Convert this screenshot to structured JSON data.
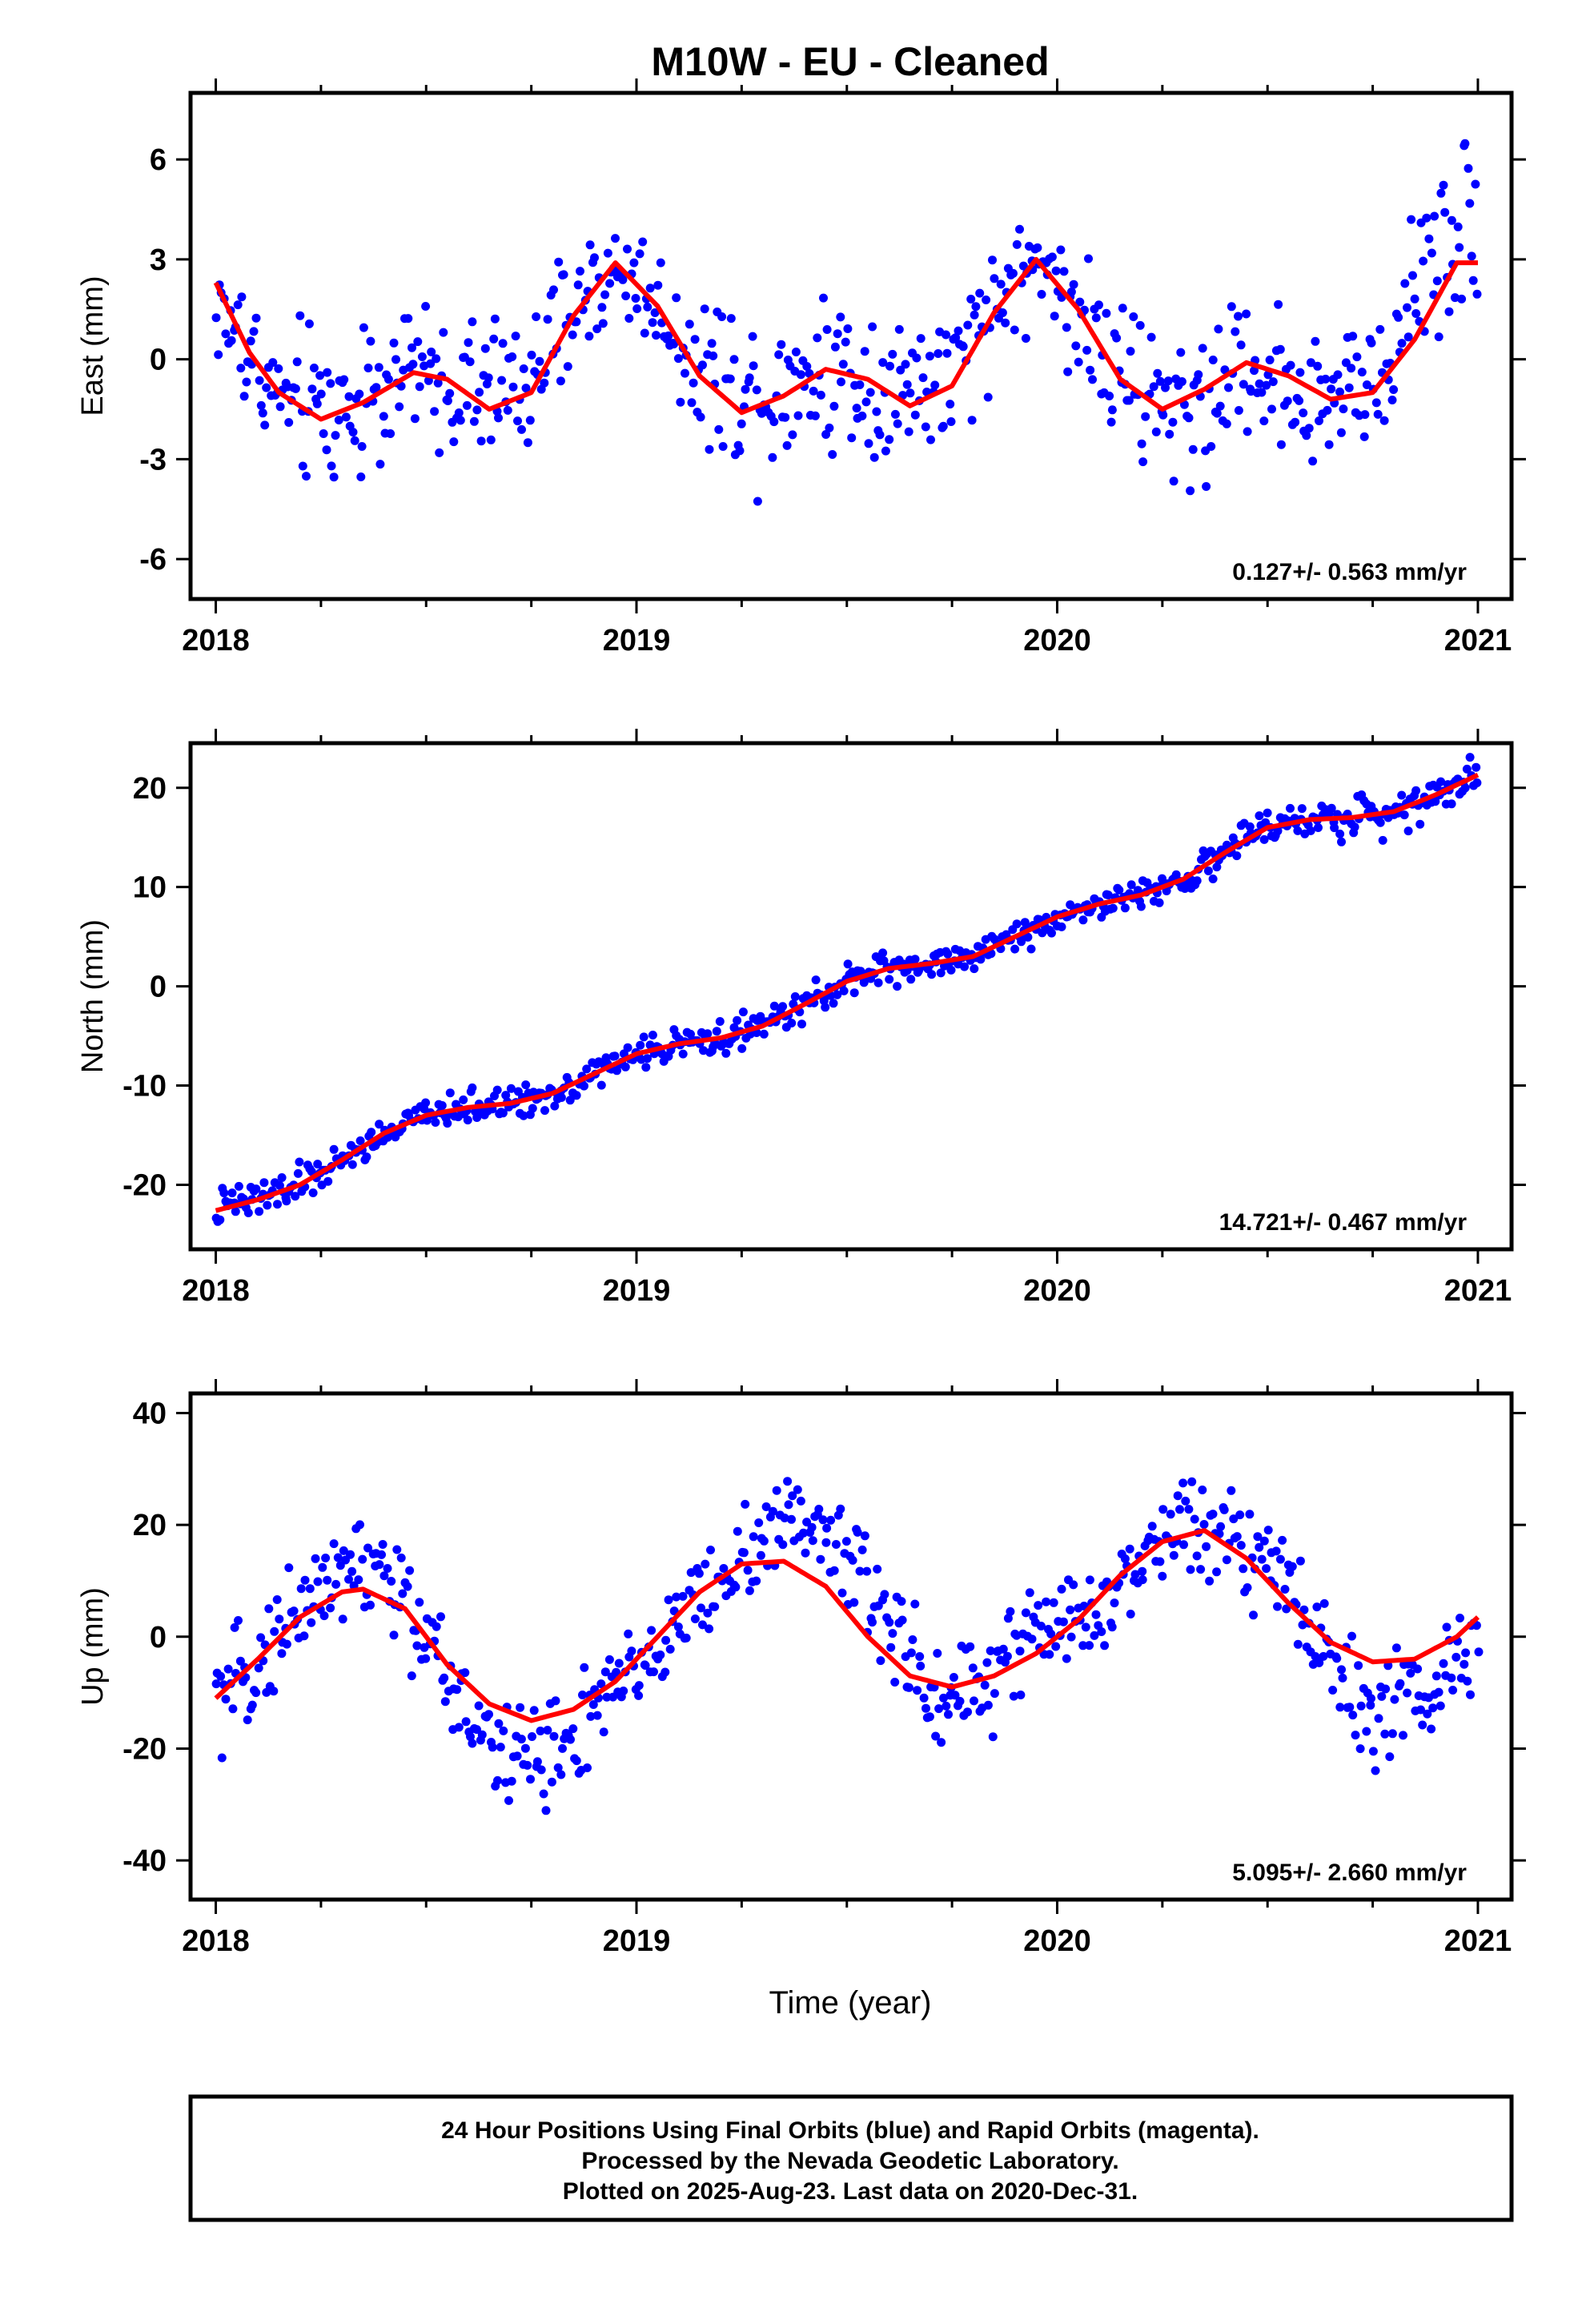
{
  "title": "M10W  - EU - Cleaned",
  "footer": {
    "line1": "24 Hour Positions Using Final Orbits (blue) and Rapid Orbits (magenta).",
    "line2": "Processed by the Nevada Geodetic Laboratory.",
    "line3": "Plotted on 2025-Aug-23. Last data on 2020-Dec-31."
  },
  "colors": {
    "points": "#0000ff",
    "fit": "#ff0000",
    "axes": "#000000"
  },
  "chart_data": [
    {
      "type": "scatter",
      "id": "east",
      "ylabel": "East (mm)",
      "xlabel": "",
      "xlim": [
        2017.94,
        2021.08
      ],
      "ylim": [
        -7.2,
        8.0
      ],
      "xticks": [
        "2018",
        "2019",
        "2020",
        "2021"
      ],
      "yticks": [
        "6",
        "3",
        "0",
        "-3",
        "-6"
      ],
      "yticks_values": [
        6,
        3,
        0,
        -3,
        -6
      ],
      "rate_label": "0.127+/- 0.563 mm/yr",
      "grid": false,
      "fit_curve": {
        "x": [
          2018.0,
          2018.08,
          2018.15,
          2018.25,
          2018.35,
          2018.47,
          2018.55,
          2018.65,
          2018.75,
          2018.85,
          2018.95,
          2019.05,
          2019.15,
          2019.25,
          2019.35,
          2019.45,
          2019.55,
          2019.65,
          2019.75,
          2019.85,
          2019.95,
          2020.05,
          2020.15,
          2020.25,
          2020.35,
          2020.45,
          2020.55,
          2020.65,
          2020.75,
          2020.85,
          2020.95,
          2021.0
        ],
        "y": [
          2.3,
          0.2,
          -1.0,
          -1.8,
          -1.3,
          -0.4,
          -0.6,
          -1.5,
          -1.0,
          1.3,
          2.9,
          1.6,
          -0.5,
          -1.6,
          -1.1,
          -0.3,
          -0.6,
          -1.4,
          -0.8,
          1.4,
          3.0,
          1.5,
          -0.6,
          -1.5,
          -0.9,
          -0.1,
          -0.5,
          -1.2,
          -1.0,
          0.6,
          2.9,
          2.9
        ]
      },
      "scatter_anchors": {
        "x": [
          2018.0,
          2018.15,
          2018.3,
          2018.45,
          2018.6,
          2018.75,
          2018.9,
          2019.0,
          2019.15,
          2019.3,
          2019.45,
          2019.6,
          2019.75,
          2019.9,
          2020.0,
          2020.15,
          2020.3,
          2020.45,
          2020.6,
          2020.75,
          2020.9,
          2021.0
        ],
        "y": [
          1.6,
          -1.2,
          -1.6,
          -0.3,
          -1.0,
          -0.6,
          2.4,
          2.5,
          -0.3,
          -1.0,
          -0.2,
          -0.8,
          -0.8,
          2.6,
          2.6,
          -0.8,
          -1.6,
          -0.2,
          -1.0,
          -1.0,
          3.6,
          4.0
        ],
        "spread": [
          1.2,
          1.6,
          1.8,
          1.5,
          1.5,
          1.3,
          1.3,
          1.2,
          1.4,
          1.8,
          1.8,
          1.8,
          1.6,
          1.2,
          1.3,
          1.8,
          1.8,
          1.6,
          1.6,
          1.4,
          1.8,
          1.8
        ]
      }
    },
    {
      "type": "scatter",
      "id": "north",
      "ylabel": "North (mm)",
      "xlabel": "",
      "xlim": [
        2017.94,
        2021.08
      ],
      "ylim": [
        -26.5,
        24.5
      ],
      "xticks": [
        "2018",
        "2019",
        "2020",
        "2021"
      ],
      "yticks": [
        "20",
        "10",
        "0",
        "-10",
        "-20"
      ],
      "yticks_values": [
        20,
        10,
        0,
        -10,
        -20
      ],
      "rate_label": "14.721+/- 0.467 mm/yr",
      "grid": false,
      "fit_curve": {
        "x": [
          2018.0,
          2018.1,
          2018.2,
          2018.3,
          2018.4,
          2018.5,
          2018.6,
          2018.7,
          2018.8,
          2018.9,
          2019.0,
          2019.1,
          2019.2,
          2019.3,
          2019.4,
          2019.5,
          2019.6,
          2019.7,
          2019.8,
          2019.9,
          2020.0,
          2020.1,
          2020.2,
          2020.3,
          2020.4,
          2020.5,
          2020.6,
          2020.7,
          2020.8,
          2020.9,
          2021.0
        ],
        "y": [
          -22.6,
          -21.5,
          -20.0,
          -17.5,
          -14.8,
          -13.0,
          -12.2,
          -11.8,
          -10.8,
          -8.8,
          -6.8,
          -5.8,
          -5.2,
          -4.0,
          -1.8,
          0.5,
          1.8,
          2.3,
          3.0,
          5.0,
          7.0,
          8.3,
          9.2,
          10.8,
          13.5,
          16.0,
          16.8,
          17.0,
          17.6,
          19.3,
          21.3
        ]
      },
      "scatter_anchors": {
        "x": [
          2018.0,
          2018.1,
          2018.2,
          2018.3,
          2018.4,
          2018.5,
          2018.6,
          2018.7,
          2018.8,
          2018.9,
          2019.0,
          2019.1,
          2019.2,
          2019.3,
          2019.4,
          2019.5,
          2019.6,
          2019.7,
          2019.8,
          2019.9,
          2020.0,
          2020.1,
          2020.2,
          2020.3,
          2020.4,
          2020.5,
          2020.6,
          2020.7,
          2020.8,
          2020.9,
          2021.0
        ],
        "y": [
          -22.6,
          -21.5,
          -20.0,
          -17.5,
          -14.8,
          -13.0,
          -12.2,
          -11.8,
          -10.8,
          -8.8,
          -6.8,
          -5.8,
          -5.2,
          -4.0,
          -1.8,
          0.5,
          1.8,
          2.3,
          3.0,
          5.0,
          7.0,
          8.3,
          9.2,
          10.8,
          13.5,
          16.0,
          16.8,
          17.0,
          17.6,
          19.3,
          21.3
        ],
        "spread": [
          1.4,
          1.4,
          1.3,
          1.2,
          1.2,
          1.2,
          1.1,
          1.1,
          1.1,
          1.1,
          1.0,
          1.0,
          1.0,
          1.0,
          1.0,
          1.0,
          1.0,
          1.0,
          1.0,
          1.0,
          1.0,
          1.0,
          1.0,
          1.0,
          1.1,
          1.2,
          1.3,
          1.4,
          1.4,
          1.3,
          1.2
        ]
      }
    },
    {
      "type": "scatter",
      "id": "up",
      "ylabel": "Up (mm)",
      "xlabel": "Time (year)",
      "xlim": [
        2017.94,
        2021.08
      ],
      "ylim": [
        -47.0,
        43.5
      ],
      "xticks": [
        "2018",
        "2019",
        "2020",
        "2021"
      ],
      "yticks": [
        "40",
        "20",
        "0",
        "-20",
        "-40"
      ],
      "yticks_values": [
        40,
        20,
        0,
        -20,
        -40
      ],
      "rate_label": "5.095+/- 2.660 mm/yr",
      "grid": false,
      "fit_curve": {
        "x": [
          2018.0,
          2018.1,
          2018.2,
          2018.3,
          2018.35,
          2018.45,
          2018.55,
          2018.65,
          2018.75,
          2018.85,
          2018.95,
          2019.05,
          2019.15,
          2019.25,
          2019.35,
          2019.45,
          2019.55,
          2019.65,
          2019.75,
          2019.85,
          2019.95,
          2020.05,
          2020.15,
          2020.25,
          2020.35,
          2020.45,
          2020.55,
          2020.65,
          2020.75,
          2020.85,
          2020.95,
          2021.0
        ],
        "y": [
          -11.0,
          -4.0,
          3.5,
          8.0,
          8.5,
          5.0,
          -5.0,
          -12.0,
          -15.0,
          -13.0,
          -8.0,
          0.0,
          8.0,
          13.0,
          13.5,
          9.0,
          0.0,
          -7.0,
          -9.0,
          -7.0,
          -3.0,
          3.0,
          11.0,
          17.0,
          19.0,
          14.0,
          6.0,
          -1.0,
          -4.5,
          -4.0,
          0.0,
          3.5
        ]
      },
      "scatter_anchors": {
        "x": [
          2018.0,
          2018.1,
          2018.2,
          2018.3,
          2018.4,
          2018.5,
          2018.6,
          2018.7,
          2018.8,
          2018.9,
          2019.0,
          2019.1,
          2019.2,
          2019.3,
          2019.4,
          2019.5,
          2019.6,
          2019.7,
          2019.8,
          2019.9,
          2020.0,
          2020.1,
          2020.2,
          2020.3,
          2020.4,
          2020.5,
          2020.6,
          2020.7,
          2020.8,
          2020.9,
          2021.0
        ],
        "y": [
          -12.0,
          -5.0,
          6.0,
          12.0,
          11.0,
          0.0,
          -14.0,
          -20.0,
          -22.0,
          -14.0,
          -6.0,
          2.0,
          10.0,
          18.0,
          21.0,
          17.0,
          2.0,
          -10.0,
          -9.0,
          -2.0,
          3.0,
          4.0,
          12.0,
          22.0,
          20.0,
          13.0,
          3.0,
          -10.0,
          -15.0,
          -10.0,
          -2.0
        ],
        "spread": [
          6.0,
          6.0,
          7.0,
          7.0,
          7.0,
          6.0,
          6.0,
          8.0,
          8.0,
          6.0,
          6.0,
          6.0,
          6.0,
          7.0,
          7.0,
          7.0,
          7.0,
          6.0,
          7.0,
          7.0,
          6.0,
          6.0,
          6.0,
          7.0,
          7.0,
          6.0,
          6.0,
          7.0,
          8.0,
          7.0,
          6.0
        ]
      }
    }
  ]
}
